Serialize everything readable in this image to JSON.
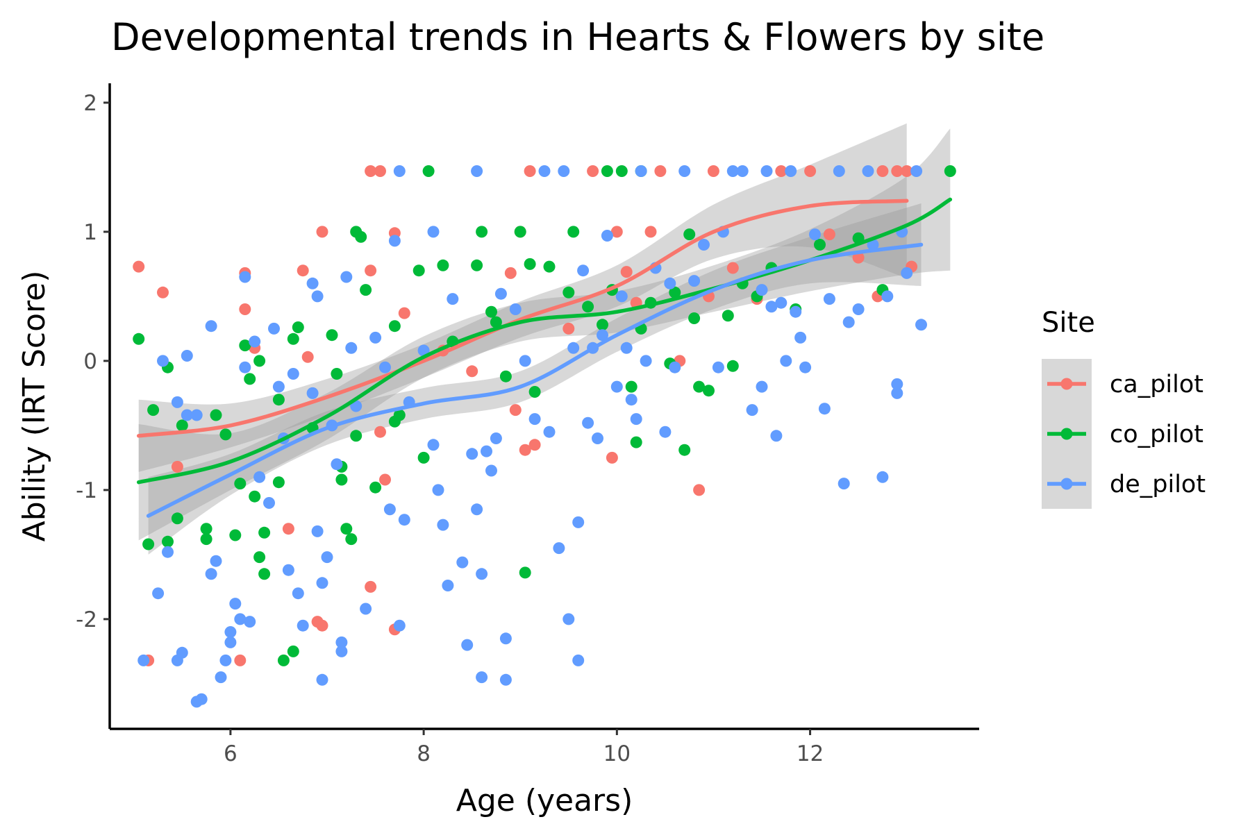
{
  "chart_data": {
    "type": "scatter",
    "title": "Developmental trends in Hearts & Flowers by site",
    "xlabel": "Age (years)",
    "ylabel": "Ability (IRT Score)",
    "xlim": [
      4.75,
      13.75
    ],
    "ylim": [
      -2.85,
      2.15
    ],
    "xticks": [
      6,
      8,
      10,
      12
    ],
    "xtick_labels": [
      "6",
      "8",
      "10",
      "12"
    ],
    "yticks": [
      -2,
      -1,
      0,
      1,
      2
    ],
    "ytick_labels": [
      "-2",
      "-1",
      "0",
      "1",
      "2"
    ],
    "grid": false,
    "legend": {
      "title": "Site",
      "position": "right"
    },
    "series": [
      {
        "name": "ca_pilot",
        "color": "#F8766D",
        "points": [
          [
            5.05,
            0.73
          ],
          [
            5.15,
            -2.32
          ],
          [
            5.3,
            0.53
          ],
          [
            5.45,
            -0.82
          ],
          [
            6.15,
            0.68
          ],
          [
            6.15,
            0.4
          ],
          [
            6.1,
            -2.32
          ],
          [
            6.25,
            0.1
          ],
          [
            6.6,
            -1.3
          ],
          [
            6.75,
            0.7
          ],
          [
            6.8,
            0.03
          ],
          [
            6.95,
            1.0
          ],
          [
            6.9,
            -2.02
          ],
          [
            6.95,
            -2.05
          ],
          [
            7.45,
            0.7
          ],
          [
            7.45,
            -1.75
          ],
          [
            7.55,
            -0.55
          ],
          [
            7.6,
            -0.92
          ],
          [
            7.7,
            0.99
          ],
          [
            7.7,
            -2.08
          ],
          [
            7.8,
            0.37
          ],
          [
            7.45,
            1.47
          ],
          [
            7.55,
            1.47
          ],
          [
            8.2,
            0.08
          ],
          [
            8.5,
            -0.08
          ],
          [
            8.9,
            0.68
          ],
          [
            8.95,
            -0.38
          ],
          [
            9.05,
            -0.69
          ],
          [
            9.1,
            1.47
          ],
          [
            9.15,
            -0.65
          ],
          [
            9.0,
            1.0
          ],
          [
            9.75,
            1.47
          ],
          [
            9.95,
            -0.75
          ],
          [
            10.0,
            1.0
          ],
          [
            10.1,
            0.69
          ],
          [
            10.2,
            0.45
          ],
          [
            10.35,
            1.0
          ],
          [
            10.45,
            1.47
          ],
          [
            10.85,
            -1.0
          ],
          [
            10.95,
            0.5
          ],
          [
            11.0,
            1.47
          ],
          [
            11.2,
            0.72
          ],
          [
            11.45,
            0.48
          ],
          [
            11.7,
            1.47
          ],
          [
            12.0,
            1.47
          ],
          [
            12.2,
            0.98
          ],
          [
            12.5,
            0.8
          ],
          [
            12.7,
            0.5
          ],
          [
            12.75,
            1.47
          ],
          [
            12.9,
            1.47
          ],
          [
            13.0,
            1.47
          ],
          [
            13.05,
            0.73
          ],
          [
            10.65,
            0.0
          ],
          [
            9.5,
            0.25
          ]
        ]
      },
      {
        "name": "co_pilot",
        "color": "#00BA38",
        "points": [
          [
            5.05,
            0.17
          ],
          [
            5.15,
            -1.42
          ],
          [
            5.2,
            -0.38
          ],
          [
            5.35,
            -0.05
          ],
          [
            5.5,
            -0.5
          ],
          [
            5.35,
            -1.4
          ],
          [
            5.45,
            -1.22
          ],
          [
            5.75,
            -1.3
          ],
          [
            5.75,
            -1.38
          ],
          [
            5.85,
            -0.42
          ],
          [
            5.95,
            -0.57
          ],
          [
            6.05,
            -1.35
          ],
          [
            6.1,
            -0.95
          ],
          [
            6.15,
            0.12
          ],
          [
            6.2,
            -0.14
          ],
          [
            6.25,
            -1.05
          ],
          [
            6.3,
            0.0
          ],
          [
            6.35,
            -1.33
          ],
          [
            6.3,
            -1.52
          ],
          [
            6.35,
            -1.65
          ],
          [
            6.5,
            -0.3
          ],
          [
            6.5,
            -0.94
          ],
          [
            6.55,
            -2.32
          ],
          [
            6.65,
            -2.25
          ],
          [
            6.7,
            0.26
          ],
          [
            6.65,
            0.17
          ],
          [
            6.85,
            -0.52
          ],
          [
            7.05,
            0.2
          ],
          [
            7.1,
            -0.1
          ],
          [
            7.15,
            -0.82
          ],
          [
            7.15,
            -0.92
          ],
          [
            7.2,
            -1.3
          ],
          [
            7.25,
            -1.38
          ],
          [
            7.3,
            -0.58
          ],
          [
            7.3,
            1.0
          ],
          [
            7.35,
            0.96
          ],
          [
            7.4,
            0.55
          ],
          [
            7.5,
            -0.98
          ],
          [
            7.7,
            0.27
          ],
          [
            7.7,
            -0.47
          ],
          [
            7.75,
            -0.42
          ],
          [
            7.95,
            0.7
          ],
          [
            8.0,
            -0.75
          ],
          [
            8.2,
            0.74
          ],
          [
            8.3,
            0.15
          ],
          [
            8.55,
            0.74
          ],
          [
            8.6,
            1.0
          ],
          [
            8.75,
            0.3
          ],
          [
            8.85,
            -0.12
          ],
          [
            9.0,
            1.0
          ],
          [
            9.05,
            -1.64
          ],
          [
            9.1,
            0.75
          ],
          [
            9.15,
            -0.24
          ],
          [
            9.3,
            0.73
          ],
          [
            9.5,
            0.53
          ],
          [
            9.55,
            1.0
          ],
          [
            9.7,
            0.42
          ],
          [
            9.85,
            0.28
          ],
          [
            9.9,
            1.47
          ],
          [
            9.95,
            0.55
          ],
          [
            10.05,
            1.47
          ],
          [
            10.15,
            -0.2
          ],
          [
            10.2,
            -0.63
          ],
          [
            10.25,
            0.25
          ],
          [
            10.35,
            0.45
          ],
          [
            10.55,
            -0.02
          ],
          [
            10.6,
            0.53
          ],
          [
            10.7,
            -0.69
          ],
          [
            10.8,
            0.33
          ],
          [
            10.85,
            -0.2
          ],
          [
            10.95,
            -0.23
          ],
          [
            11.15,
            0.35
          ],
          [
            11.2,
            -0.04
          ],
          [
            11.3,
            0.6
          ],
          [
            11.45,
            0.5
          ],
          [
            11.6,
            0.72
          ],
          [
            11.85,
            0.4
          ],
          [
            12.1,
            0.9
          ],
          [
            12.5,
            0.95
          ],
          [
            12.75,
            0.55
          ],
          [
            13.45,
            1.47
          ],
          [
            8.05,
            1.47
          ],
          [
            8.7,
            0.38
          ],
          [
            10.25,
            1.47
          ],
          [
            10.75,
            0.98
          ]
        ]
      },
      {
        "name": "de_pilot",
        "color": "#619CFF",
        "points": [
          [
            5.1,
            -2.32
          ],
          [
            5.25,
            -1.8
          ],
          [
            5.3,
            0.0
          ],
          [
            5.35,
            -1.48
          ],
          [
            5.45,
            -0.32
          ],
          [
            5.45,
            -2.32
          ],
          [
            5.5,
            -2.26
          ],
          [
            5.55,
            0.04
          ],
          [
            5.55,
            -0.42
          ],
          [
            5.65,
            -0.42
          ],
          [
            5.65,
            -2.64
          ],
          [
            5.7,
            -2.62
          ],
          [
            5.8,
            0.27
          ],
          [
            5.8,
            -1.65
          ],
          [
            5.85,
            -1.55
          ],
          [
            5.9,
            -2.45
          ],
          [
            5.95,
            -2.32
          ],
          [
            6.0,
            -2.18
          ],
          [
            6.0,
            -2.1
          ],
          [
            6.05,
            -1.88
          ],
          [
            6.1,
            -2.0
          ],
          [
            6.15,
            -0.05
          ],
          [
            6.15,
            0.65
          ],
          [
            6.2,
            -2.02
          ],
          [
            6.25,
            0.15
          ],
          [
            6.3,
            -0.9
          ],
          [
            6.4,
            -1.1
          ],
          [
            6.45,
            0.25
          ],
          [
            6.5,
            -0.2
          ],
          [
            6.55,
            -0.6
          ],
          [
            6.6,
            -1.62
          ],
          [
            6.65,
            -0.1
          ],
          [
            6.7,
            -1.8
          ],
          [
            6.75,
            -2.05
          ],
          [
            6.85,
            0.6
          ],
          [
            6.85,
            -0.25
          ],
          [
            6.9,
            0.5
          ],
          [
            6.9,
            -1.32
          ],
          [
            6.95,
            -1.72
          ],
          [
            6.95,
            -2.47
          ],
          [
            7.0,
            -1.52
          ],
          [
            7.05,
            -0.5
          ],
          [
            7.1,
            -0.8
          ],
          [
            7.15,
            -2.18
          ],
          [
            7.15,
            -2.25
          ],
          [
            7.2,
            0.65
          ],
          [
            7.25,
            0.1
          ],
          [
            7.3,
            -0.35
          ],
          [
            7.4,
            -1.92
          ],
          [
            7.5,
            0.18
          ],
          [
            7.6,
            -0.05
          ],
          [
            7.65,
            -1.15
          ],
          [
            7.7,
            0.93
          ],
          [
            7.75,
            -2.05
          ],
          [
            7.8,
            -1.23
          ],
          [
            7.85,
            -0.32
          ],
          [
            8.0,
            0.08
          ],
          [
            8.1,
            1.0
          ],
          [
            8.1,
            -0.65
          ],
          [
            8.15,
            -1.0
          ],
          [
            8.2,
            -1.27
          ],
          [
            8.25,
            -1.74
          ],
          [
            8.3,
            0.48
          ],
          [
            8.4,
            -1.56
          ],
          [
            8.45,
            -2.2
          ],
          [
            8.5,
            -0.72
          ],
          [
            8.55,
            -1.15
          ],
          [
            8.6,
            -2.45
          ],
          [
            8.6,
            -1.65
          ],
          [
            8.65,
            -0.7
          ],
          [
            8.7,
            -0.85
          ],
          [
            8.75,
            -0.6
          ],
          [
            8.8,
            0.52
          ],
          [
            8.85,
            -2.15
          ],
          [
            8.85,
            -2.47
          ],
          [
            8.95,
            0.4
          ],
          [
            9.05,
            0.0
          ],
          [
            9.15,
            -0.45
          ],
          [
            9.25,
            1.47
          ],
          [
            9.3,
            -0.55
          ],
          [
            9.4,
            -1.45
          ],
          [
            9.5,
            -2.0
          ],
          [
            9.55,
            0.1
          ],
          [
            9.6,
            -1.25
          ],
          [
            9.6,
            -2.32
          ],
          [
            9.65,
            0.7
          ],
          [
            9.7,
            -0.48
          ],
          [
            9.75,
            0.1
          ],
          [
            9.8,
            -0.6
          ],
          [
            9.85,
            0.2
          ],
          [
            9.9,
            0.97
          ],
          [
            10.0,
            -0.2
          ],
          [
            10.05,
            0.5
          ],
          [
            10.1,
            0.1
          ],
          [
            10.15,
            -0.3
          ],
          [
            10.2,
            -0.45
          ],
          [
            10.25,
            1.47
          ],
          [
            10.3,
            0.0
          ],
          [
            10.4,
            0.72
          ],
          [
            10.5,
            -0.55
          ],
          [
            10.55,
            0.6
          ],
          [
            10.6,
            -0.05
          ],
          [
            10.7,
            1.47
          ],
          [
            10.8,
            0.62
          ],
          [
            10.9,
            0.9
          ],
          [
            11.05,
            -0.05
          ],
          [
            11.1,
            1.0
          ],
          [
            11.2,
            1.47
          ],
          [
            11.3,
            1.47
          ],
          [
            11.4,
            -0.38
          ],
          [
            11.5,
            0.55
          ],
          [
            11.5,
            -0.2
          ],
          [
            11.6,
            0.42
          ],
          [
            11.65,
            -0.58
          ],
          [
            11.7,
            0.45
          ],
          [
            11.75,
            0.0
          ],
          [
            11.8,
            1.47
          ],
          [
            11.85,
            0.38
          ],
          [
            11.9,
            0.18
          ],
          [
            11.95,
            -0.05
          ],
          [
            12.05,
            0.98
          ],
          [
            12.15,
            -0.37
          ],
          [
            12.2,
            0.48
          ],
          [
            12.3,
            1.47
          ],
          [
            12.35,
            -0.95
          ],
          [
            12.4,
            0.3
          ],
          [
            12.5,
            0.4
          ],
          [
            12.6,
            1.47
          ],
          [
            12.65,
            0.9
          ],
          [
            12.75,
            -0.9
          ],
          [
            12.8,
            0.5
          ],
          [
            12.9,
            -0.25
          ],
          [
            12.9,
            -0.18
          ],
          [
            13.0,
            0.68
          ],
          [
            13.15,
            0.28
          ],
          [
            13.1,
            1.47
          ],
          [
            7.75,
            1.47
          ],
          [
            8.55,
            1.47
          ],
          [
            9.45,
            1.47
          ],
          [
            11.55,
            1.47
          ],
          [
            12.95,
            1.0
          ]
        ]
      }
    ],
    "smooth": [
      {
        "name": "ca_pilot",
        "x": [
          5.05,
          6,
          7,
          8,
          9,
          10,
          11,
          12,
          13
        ],
        "y": [
          -0.58,
          -0.5,
          -0.28,
          0.0,
          0.32,
          0.58,
          1.0,
          1.2,
          1.24
        ],
        "se": [
          0.28,
          0.17,
          0.14,
          0.13,
          0.14,
          0.16,
          0.21,
          0.32,
          0.6
        ]
      },
      {
        "name": "co_pilot",
        "x": [
          5.05,
          6,
          7,
          8,
          9,
          10,
          11,
          12,
          13,
          13.45
        ],
        "y": [
          -0.94,
          -0.78,
          -0.43,
          0.03,
          0.3,
          0.38,
          0.56,
          0.78,
          1.05,
          1.25
        ],
        "se": [
          0.45,
          0.22,
          0.18,
          0.16,
          0.15,
          0.16,
          0.18,
          0.24,
          0.38,
          0.55
        ]
      },
      {
        "name": "de_pilot",
        "x": [
          5.15,
          6,
          7,
          8,
          9,
          10,
          11,
          12,
          13.15
        ],
        "y": [
          -1.2,
          -0.88,
          -0.52,
          -0.33,
          -0.2,
          0.2,
          0.55,
          0.78,
          0.9
        ],
        "se": [
          0.3,
          0.16,
          0.13,
          0.12,
          0.12,
          0.13,
          0.15,
          0.18,
          0.32
        ]
      }
    ]
  }
}
